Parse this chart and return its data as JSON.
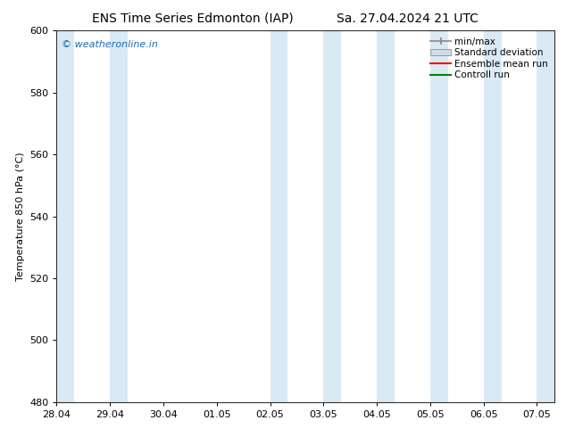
{
  "title_left": "ENS Time Series Edmonton (IAP)",
  "title_right": "Sa. 27.04.2024 21 UTC",
  "ylabel": "Temperature 850 hPa (°C)",
  "ylim": [
    480,
    600
  ],
  "yticks": [
    480,
    500,
    520,
    540,
    560,
    580,
    600
  ],
  "xlim_start": 0.0,
  "xlim_end": 9.333,
  "xtick_positions": [
    0,
    1,
    2,
    3,
    4,
    5,
    6,
    7,
    8,
    9
  ],
  "xtick_labels": [
    "28.04",
    "29.04",
    "30.04",
    "01.05",
    "02.05",
    "03.05",
    "04.05",
    "05.05",
    "06.05",
    "07.05"
  ],
  "watermark": "© weatheronline.in",
  "watermark_color": "#1a6ab5",
  "background_color": "#ffffff",
  "plot_bg_color": "#ffffff",
  "shaded_bands": [
    {
      "xmin": 0.0,
      "xmax": 0.333,
      "color": "#daeaf5"
    },
    {
      "xmin": 1.0,
      "xmax": 1.333,
      "color": "#daeaf5"
    },
    {
      "xmin": 4.0,
      "xmax": 4.333,
      "color": "#daeaf5"
    },
    {
      "xmin": 5.0,
      "xmax": 5.333,
      "color": "#daeaf5"
    },
    {
      "xmin": 6.0,
      "xmax": 6.333,
      "color": "#daeaf5"
    },
    {
      "xmin": 7.0,
      "xmax": 7.333,
      "color": "#daeaf5"
    },
    {
      "xmin": 8.0,
      "xmax": 8.333,
      "color": "#daeaf5"
    },
    {
      "xmin": 9.0,
      "xmax": 9.333,
      "color": "#daeaf5"
    }
  ],
  "legend_labels": [
    "min/max",
    "Standard deviation",
    "Ensemble mean run",
    "Controll run"
  ],
  "legend_colors": [
    "#888888",
    "#bbbbbb",
    "#ff0000",
    "#008000"
  ],
  "title_fontsize": 10,
  "axis_label_fontsize": 8,
  "tick_fontsize": 8,
  "watermark_fontsize": 8,
  "legend_fontsize": 7.5
}
